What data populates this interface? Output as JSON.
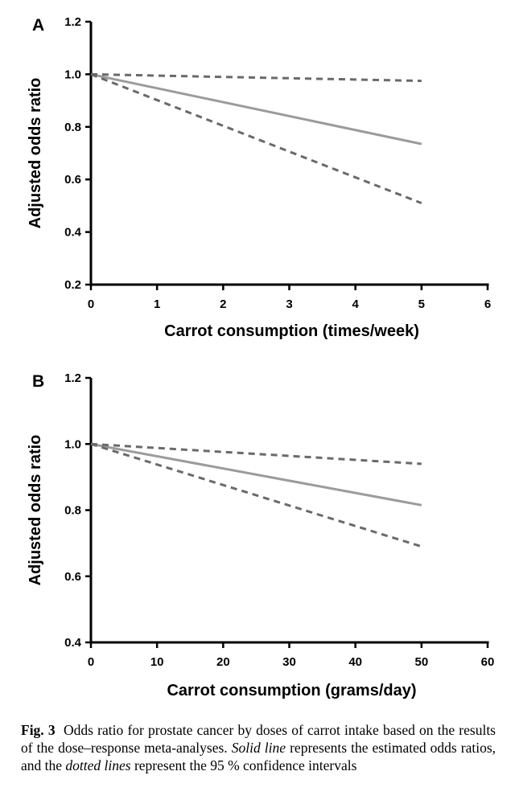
{
  "chart_data": [
    {
      "type": "line",
      "panel_label": "A",
      "xlabel": "Carrot consumption (times/week)",
      "ylabel": "Adjusted odds ratio",
      "xlim": [
        0,
        6
      ],
      "ylim": [
        0.2,
        1.2
      ],
      "x_ticks": [
        "0",
        "1",
        "2",
        "3",
        "4",
        "5",
        "6"
      ],
      "y_ticks": [
        "0.2",
        "0.4",
        "0.6",
        "0.8",
        "1.0",
        "1.2"
      ],
      "series": [
        {
          "style": "solid",
          "x": [
            0,
            5
          ],
          "y": [
            1.0,
            0.735
          ]
        },
        {
          "style": "dashed",
          "x": [
            0,
            5
          ],
          "y": [
            1.0,
            0.975
          ]
        },
        {
          "style": "dashed",
          "x": [
            0,
            5
          ],
          "y": [
            1.0,
            0.51
          ]
        }
      ]
    },
    {
      "type": "line",
      "panel_label": "B",
      "xlabel": "Carrot consumption (grams/day)",
      "ylabel": "Adjusted odds ratio",
      "xlim": [
        0,
        60
      ],
      "ylim": [
        0.4,
        1.2
      ],
      "x_ticks": [
        "0",
        "10",
        "20",
        "30",
        "40",
        "50",
        "60"
      ],
      "y_ticks": [
        "0.4",
        "0.6",
        "0.8",
        "1.0",
        "1.2"
      ],
      "series": [
        {
          "style": "solid",
          "x": [
            0,
            50
          ],
          "y": [
            1.0,
            0.815
          ]
        },
        {
          "style": "dashed",
          "x": [
            0,
            50
          ],
          "y": [
            1.0,
            0.94
          ]
        },
        {
          "style": "dashed",
          "x": [
            0,
            50
          ],
          "y": [
            1.0,
            0.69
          ]
        }
      ]
    }
  ],
  "caption": {
    "label": "Fig. 3",
    "text_1": "Odds ratio for prostate cancer by doses of carrot intake based on the results of the dose–response meta-analyses.",
    "solid_term": "Solid line",
    "text_2": "represents the estimated odds ratios, and the",
    "dotted_term": "dotted lines",
    "text_3": "represent the 95 % confidence intervals"
  }
}
